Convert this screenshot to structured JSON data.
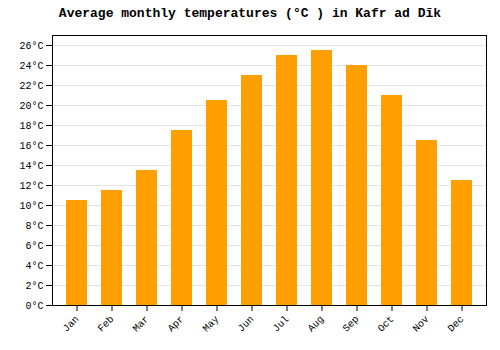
{
  "chart_data": {
    "type": "bar",
    "title": "Average monthly temperatures (°C ) in Kafr ad Dīk",
    "categories": [
      "Jan",
      "Feb",
      "Mar",
      "Apr",
      "May",
      "Jun",
      "Jul",
      "Aug",
      "Sep",
      "Oct",
      "Nov",
      "Dec"
    ],
    "values": [
      10.5,
      11.5,
      13.5,
      17.5,
      20.5,
      23.0,
      25.0,
      25.5,
      24.0,
      21.0,
      16.5,
      12.5
    ],
    "color": "#FFA000",
    "ylim": [
      0,
      27
    ],
    "yticks": [
      {
        "value": 0,
        "label": "0°C"
      },
      {
        "value": 2,
        "label": "2°C"
      },
      {
        "value": 4,
        "label": "4°C"
      },
      {
        "value": 6,
        "label": "6°C"
      },
      {
        "value": 8,
        "label": "8°C"
      },
      {
        "value": 10,
        "label": "10°C"
      },
      {
        "value": 12,
        "label": "12°C"
      },
      {
        "value": 14,
        "label": "14°C"
      },
      {
        "value": 16,
        "label": "16°C"
      },
      {
        "value": 18,
        "label": "18°C"
      },
      {
        "value": 20,
        "label": "20°C"
      },
      {
        "value": 22,
        "label": "22°C"
      },
      {
        "value": 24,
        "label": "24°C"
      },
      {
        "value": 26,
        "label": "26°C"
      }
    ],
    "grid": true
  }
}
